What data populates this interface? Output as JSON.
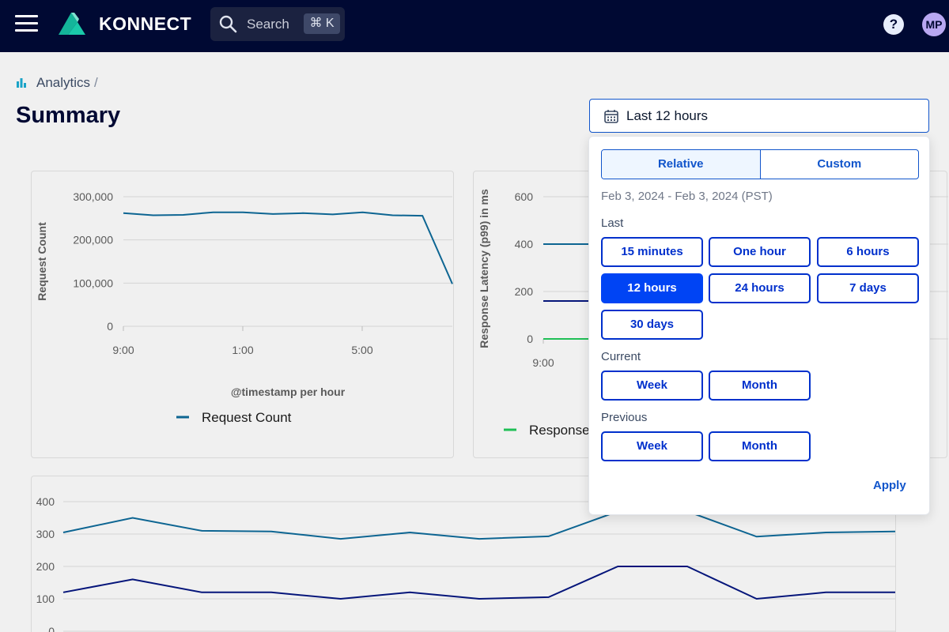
{
  "header": {
    "brand": "KONNECT",
    "search_label": "Search",
    "search_shortcut": "⌘ K",
    "help_label": "?",
    "avatar_initials": "MP"
  },
  "breadcrumb": {
    "root": "Analytics",
    "separator": "/"
  },
  "page": {
    "title": "Summary"
  },
  "date_picker": {
    "trigger_label": "Last 12 hours",
    "tabs": [
      "Relative",
      "Custom"
    ],
    "active_tab": "Relative",
    "range_text": "Feb 3, 2024 - Feb 3, 2024 (PST)",
    "sections": {
      "last": {
        "label": "Last",
        "options": [
          "15 minutes",
          "One hour",
          "6 hours",
          "12 hours",
          "24 hours",
          "7 days",
          "30 days"
        ]
      },
      "current": {
        "label": "Current",
        "options": [
          "Week",
          "Month"
        ]
      },
      "previous": {
        "label": "Previous",
        "options": [
          "Week",
          "Month"
        ]
      }
    },
    "selected_option": "12 hours",
    "apply_label": "Apply"
  },
  "colors": {
    "nav_bg": "#000933",
    "accent": "#0044f4",
    "series_teal": "#0d6592",
    "series_navy": "#05157a",
    "series_green": "#1fbf56"
  },
  "chart_data": [
    {
      "type": "line",
      "ylabel": "Request Count",
      "xlabel": "@timestamp per hour",
      "yticks": [
        "300,000",
        "200,000",
        "100,000",
        "0"
      ],
      "xticks": [
        "9:00",
        "1:00",
        "5:00"
      ],
      "ylim": [
        0,
        300000
      ],
      "grid": true,
      "legend_position": "bottom",
      "series": [
        {
          "name": "Request Count",
          "color": "#0d6592",
          "values": [
            262000,
            257000,
            258000,
            264000,
            264000,
            260000,
            262000,
            259000,
            264000,
            257000,
            256000,
            98000
          ]
        }
      ]
    },
    {
      "type": "line",
      "ylabel": "Response Latency (p99) in ms",
      "yticks": [
        "600",
        "400",
        "200",
        "0"
      ],
      "xticks": [
        "9:00"
      ],
      "ylim": [
        0,
        600
      ],
      "grid": true,
      "legend_position": "bottom",
      "legend_text": "Response",
      "series": [
        {
          "color": "#0d6592",
          "values": [
            400,
            400
          ]
        },
        {
          "color": "#05157a",
          "values": [
            160,
            160
          ]
        },
        {
          "color": "#1fbf56",
          "values": [
            0,
            0
          ]
        }
      ]
    },
    {
      "type": "line",
      "yticks": [
        "400",
        "300",
        "200",
        "100",
        "0"
      ],
      "ylim": [
        0,
        400
      ],
      "grid": true,
      "series": [
        {
          "color": "#0d6592",
          "values": [
            305,
            350,
            310,
            308,
            285,
            305,
            285,
            293,
            370,
            370,
            292,
            305,
            308
          ]
        },
        {
          "color": "#05157a",
          "values": [
            120,
            160,
            120,
            120,
            100,
            120,
            100,
            105,
            200,
            200,
            100,
            120,
            120
          ]
        }
      ]
    }
  ]
}
